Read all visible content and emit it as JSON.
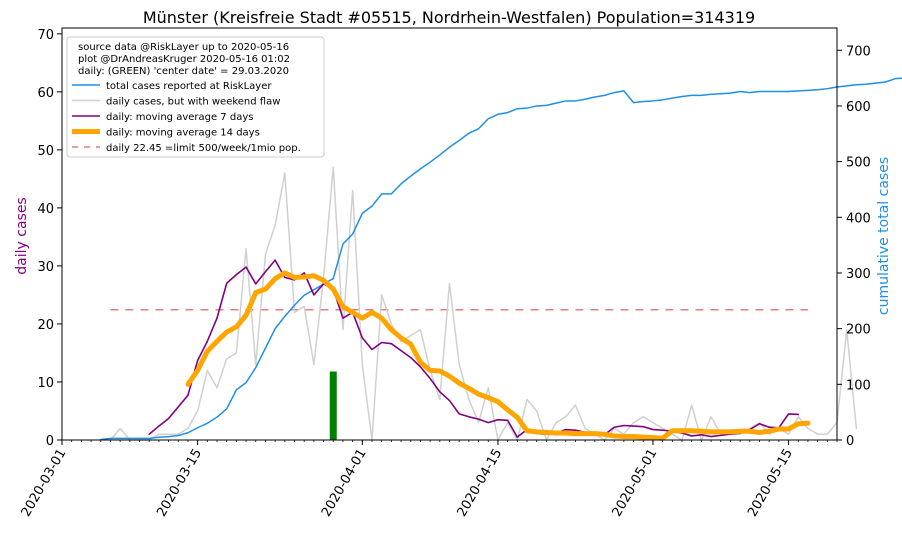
{
  "chart_data": {
    "type": "line",
    "title": "Münster (Kreisfreie Stadt #05515, Nordrhein-Westfalen) Population=314319",
    "ylabel_left": "daily cases",
    "ylabel_right": "cumulative total cases",
    "xlim": [
      "2020-03-01",
      "2020-05-20"
    ],
    "ylim_left": [
      0,
      71
    ],
    "ylim_right": [
      0,
      740
    ],
    "x_ticks": [
      "2020-03-01",
      "2020-03-15",
      "2020-04-01",
      "2020-04-15",
      "2020-05-01",
      "2020-05-15"
    ],
    "y_ticks_left": [
      0,
      10,
      20,
      30,
      40,
      50,
      60,
      70
    ],
    "y_ticks_right": [
      0,
      100,
      200,
      300,
      400,
      500,
      600,
      700
    ],
    "legend_position": "top-left",
    "legend_info": [
      "source data @RiskLayer up to 2020-05-16",
      "plot @DrAndreasKruger 2020-05-16 01:02",
      "daily: (GREEN) 'center date' = 29.03.2020"
    ],
    "center_date_marker": {
      "date": "2020-03-29",
      "value": 11.8,
      "color": "#008000"
    },
    "limit_line": {
      "value": 22.45,
      "color": "#e77c7c",
      "start": "2020-03-06",
      "end": "2020-05-17"
    },
    "colors": {
      "total": "#1f8fe8",
      "daily": "#d0d0d0",
      "ma7": "#800080",
      "ma14": "#ffa500",
      "right_axis_label": "#1f8fe8",
      "left_axis_label": "#800080"
    },
    "series": [
      {
        "name": "total cases reported at RiskLayer",
        "axis": "right",
        "start": "2020-03-05",
        "values": [
          1,
          3,
          3,
          3,
          3,
          3,
          5,
          6,
          8,
          13,
          22,
          30,
          41,
          56,
          90,
          103,
          130,
          165,
          200,
          222,
          242,
          260,
          270,
          280,
          290,
          352,
          370,
          407,
          420,
          442,
          442,
          460,
          474,
          487,
          499,
          512,
          526,
          538,
          551,
          559,
          577,
          585,
          588,
          595,
          596,
          600,
          601,
          605,
          609,
          609,
          612,
          616,
          619,
          624,
          627,
          606,
          608,
          609,
          611,
          614,
          617,
          619,
          619,
          621,
          622,
          623,
          626,
          624,
          626,
          626,
          626,
          626,
          627,
          628,
          629,
          631,
          634,
          636,
          638,
          639,
          641,
          643,
          649,
          650,
          651,
          655,
          660,
          662,
          665,
          667,
          670,
          674,
          678,
          682,
          686,
          672,
          673
        ]
      },
      {
        "name": "daily cases, but with weekend flaw",
        "axis": "left",
        "start": "2020-03-06",
        "values": [
          0,
          2,
          0,
          0,
          0,
          1,
          1,
          1,
          2,
          5,
          12,
          9,
          14,
          15,
          33,
          13,
          32,
          37,
          46,
          22,
          23,
          13,
          28,
          47,
          19,
          43,
          13,
          0,
          25,
          20,
          17,
          18,
          19,
          12,
          7,
          27,
          13,
          7,
          3,
          9,
          0,
          3,
          0,
          7,
          5,
          0,
          3,
          4,
          6,
          2,
          1,
          0,
          2,
          1,
          3,
          4,
          3,
          2,
          1,
          0,
          6,
          0,
          4,
          1,
          1,
          1,
          2,
          3,
          1,
          2,
          1,
          4,
          2,
          1,
          1,
          3,
          19,
          2
        ]
      },
      {
        "name": "daily: moving average 7 days",
        "axis": "left",
        "start": "2020-03-10",
        "values": [
          1,
          2.4,
          3.7,
          5.7,
          7.7,
          13.7,
          17,
          21,
          27,
          28.5,
          29.8,
          26.9,
          29,
          31,
          28,
          27.6,
          28.8,
          25,
          26.9,
          26,
          21,
          22,
          17.6,
          15.6,
          16.8,
          16.6,
          15.4,
          14.2,
          12.6,
          10.6,
          8.3,
          6.8,
          4.5,
          4,
          3.6,
          3,
          3.5,
          3.4,
          0.5,
          1.8,
          1.1,
          1,
          1.2,
          1.8,
          1.7,
          1.3,
          1,
          0.9,
          2.2,
          2.5,
          2.4,
          2.3,
          1.8,
          1.7,
          1.5,
          1.2,
          0.7,
          0.9,
          0.6,
          0.8,
          1,
          1.2,
          1.8,
          2.8,
          2.2,
          2.1,
          4.5,
          4.4
        ]
      },
      {
        "name": "daily: moving average 14 days",
        "axis": "left",
        "start": "2020-03-14",
        "values": [
          9.6,
          12,
          15.3,
          17,
          18.6,
          19.5,
          21.5,
          25.4,
          26,
          27.8,
          28.8,
          28,
          28.1,
          28.3,
          27.5,
          26,
          23,
          22,
          21,
          22,
          21,
          19,
          17.6,
          16.5,
          13.4,
          12,
          11.9,
          11,
          9.8,
          8.9,
          7.9,
          7.3,
          6.6,
          5.2,
          3.9,
          1.6,
          1.4,
          1.3,
          1.2,
          1.2,
          1.1,
          1.1,
          1.1,
          1,
          0.7,
          0.6,
          0.6,
          0.5,
          0.4,
          0.3,
          1.6,
          1.6,
          1.6,
          1.5,
          1.4,
          1.4,
          1.4,
          1.5,
          1.5,
          1.3,
          1.5,
          1.9,
          1.9,
          2.8,
          2.9
        ]
      },
      {
        "name": "daily 22.45 =limit 500/week/1mio pop.",
        "axis": "left",
        "values": [
          22.45
        ]
      }
    ]
  }
}
